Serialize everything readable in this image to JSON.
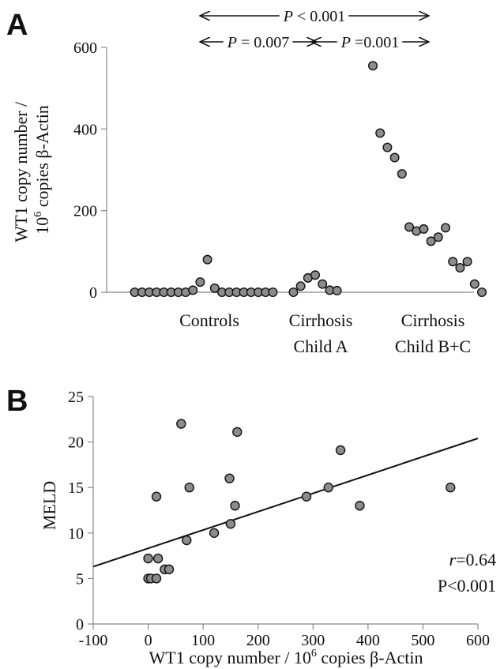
{
  "chart_data": [
    {
      "panel_label": "A",
      "type": "scatter",
      "ylabel_line1": "WT1 copy number /",
      "ylabel_line2_pre": "10",
      "ylabel_line2_sup": "6",
      "ylabel_line2_post": " copies β-Actin",
      "ylim": [
        0,
        600
      ],
      "yticks": [
        "0",
        "200",
        "400",
        "600"
      ],
      "grid": false,
      "groups": [
        {
          "label_line1": "Controls",
          "label_line2": "",
          "values": [
            0,
            0,
            0,
            0,
            0,
            0,
            0,
            0,
            5,
            25,
            80,
            10,
            0,
            0,
            0,
            0,
            0,
            0,
            0,
            0
          ]
        },
        {
          "label_line1": "Cirrhosis",
          "label_line2": "Child A",
          "values": [
            0,
            15,
            35,
            42,
            20,
            5,
            4
          ]
        },
        {
          "label_line1": "Cirrhosis",
          "label_line2": "Child B+C",
          "values": [
            555,
            390,
            355,
            330,
            290,
            160,
            150,
            155,
            125,
            135,
            158,
            75,
            60,
            75,
            20,
            0
          ]
        }
      ],
      "comparisons": [
        {
          "italic": "P",
          "rest": " < 0.001",
          "from": 0,
          "to": 2
        },
        {
          "italic": "P",
          "rest": " = 0.007",
          "from": 0,
          "to": 1
        },
        {
          "italic": "P",
          "rest": " =0.001",
          "from": 1,
          "to": 2
        }
      ]
    },
    {
      "panel_label": "B",
      "type": "scatter",
      "xlabel_pre": "WT1 copy number / 10",
      "xlabel_sup": "6",
      "xlabel_post": " copies β-Actin",
      "ylabel": "MELD",
      "xlim": [
        -100,
        600
      ],
      "ylim": [
        0,
        25
      ],
      "xticks": [
        "-100",
        "0",
        "100",
        "200",
        "300",
        "400",
        "500",
        "600"
      ],
      "yticks": [
        "0",
        "5",
        "10",
        "15",
        "20",
        "25"
      ],
      "grid": false,
      "points": [
        {
          "x": 0,
          "y": 7.2
        },
        {
          "x": 0,
          "y": 5
        },
        {
          "x": 5,
          "y": 5
        },
        {
          "x": 15,
          "y": 5
        },
        {
          "x": 18,
          "y": 7.2
        },
        {
          "x": 30,
          "y": 6
        },
        {
          "x": 38,
          "y": 6
        },
        {
          "x": 15,
          "y": 14
        },
        {
          "x": 60,
          "y": 22
        },
        {
          "x": 70,
          "y": 9.2
        },
        {
          "x": 75,
          "y": 15
        },
        {
          "x": 120,
          "y": 10
        },
        {
          "x": 148,
          "y": 16
        },
        {
          "x": 150,
          "y": 11
        },
        {
          "x": 158,
          "y": 13
        },
        {
          "x": 162,
          "y": 21.1
        },
        {
          "x": 288,
          "y": 14
        },
        {
          "x": 328,
          "y": 15
        },
        {
          "x": 350,
          "y": 19.1
        },
        {
          "x": 385,
          "y": 13
        },
        {
          "x": 550,
          "y": 15
        }
      ],
      "regression": {
        "x1": -100,
        "y1": 6.3,
        "x2": 600,
        "y2": 20.4
      },
      "annotation_r_italic": "r",
      "annotation_r_rest": "=0.64",
      "annotation_p": "P<0.001"
    }
  ]
}
